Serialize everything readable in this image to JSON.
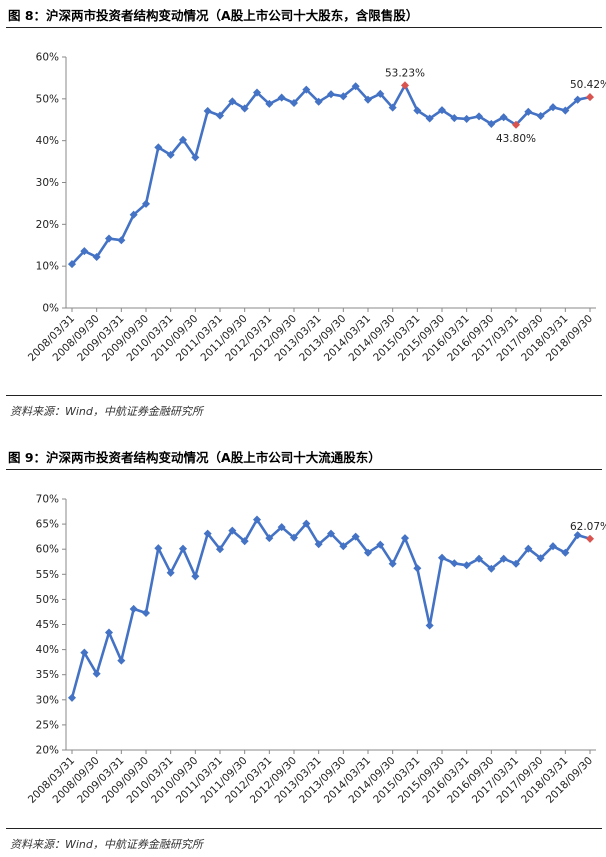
{
  "figures": [
    {
      "title": "图 8：沪深两市投资者结构变动情况（A股上市公司十大股东，含限售股）",
      "source": "资料来源：Wind，中航证券金融研究所"
    },
    {
      "title": "图 9：沪深两市投资者结构变动情况（A股上市公司十大流通股东）",
      "source": "资料来源：Wind，中航证券金融研究所"
    }
  ],
  "colors": {
    "line": "#4472C4",
    "highlight": "#D9534F",
    "grid": "#D9D9D9",
    "axis": "#888888"
  },
  "chart_data": [
    {
      "type": "line",
      "title": "",
      "xlabel": "",
      "ylabel": "",
      "ylim": [
        0,
        60
      ],
      "y_ticks": [
        "0%",
        "10%",
        "20%",
        "30%",
        "40%",
        "50%",
        "60%"
      ],
      "grid": false,
      "x_tick_labels": [
        "2008/03/31",
        "2008/09/30",
        "2009/03/31",
        "2009/09/30",
        "2010/03/31",
        "2010/09/30",
        "2011/03/31",
        "2011/09/30",
        "2012/03/31",
        "2012/09/30",
        "2013/03/31",
        "2013/09/30",
        "2014/03/31",
        "2014/09/30",
        "2015/03/31",
        "2015/09/30",
        "2016/03/31",
        "2016/09/30",
        "2017/03/31",
        "2017/09/30",
        "2018/03/31",
        "2018/09/30"
      ],
      "series": [
        {
          "values": [
            10.5,
            13.6,
            12.2,
            16.6,
            16.2,
            22.3,
            24.9,
            38.4,
            36.6,
            40.2,
            36.0,
            47.1,
            46.0,
            49.4,
            47.7,
            51.5,
            48.8,
            50.3,
            49.0,
            52.2,
            49.3,
            51.1,
            50.6,
            53.0,
            49.8,
            51.2,
            47.9,
            53.23,
            47.2,
            45.3,
            47.3,
            45.4,
            45.2,
            45.8,
            44.0,
            45.6,
            43.8,
            46.9,
            45.9,
            48.0,
            47.2,
            49.8,
            50.42
          ]
        }
      ],
      "annotations": [
        {
          "label": "53.23%",
          "index": 27,
          "value": 53.23,
          "position": "above"
        },
        {
          "label": "43.80%",
          "index": 36,
          "value": 43.8,
          "position": "below"
        },
        {
          "label": "50.42%",
          "index": 42,
          "value": 50.42,
          "position": "above"
        }
      ]
    },
    {
      "type": "line",
      "title": "",
      "xlabel": "",
      "ylabel": "",
      "ylim": [
        20,
        70
      ],
      "y_ticks": [
        "20%",
        "25%",
        "30%",
        "35%",
        "40%",
        "45%",
        "50%",
        "55%",
        "60%",
        "65%",
        "70%"
      ],
      "grid": false,
      "x_tick_labels": [
        "2008/03/31",
        "2008/09/30",
        "2009/03/31",
        "2009/09/30",
        "2010/03/31",
        "2010/09/30",
        "2011/03/31",
        "2011/09/30",
        "2012/03/31",
        "2012/09/30",
        "2013/03/31",
        "2013/09/30",
        "2014/03/31",
        "2014/09/30",
        "2015/03/31",
        "2015/09/30",
        "2016/03/31",
        "2016/09/30",
        "2017/03/31",
        "2017/09/30",
        "2018/03/31",
        "2018/09/30"
      ],
      "series": [
        {
          "values": [
            30.4,
            39.4,
            35.2,
            43.4,
            37.8,
            48.1,
            47.3,
            60.2,
            55.3,
            60.1,
            54.6,
            63.1,
            60.0,
            63.7,
            61.6,
            65.9,
            62.2,
            64.4,
            62.3,
            65.1,
            61.0,
            63.1,
            60.6,
            62.5,
            59.3,
            60.9,
            57.1,
            62.2,
            56.2,
            44.8,
            58.3,
            57.2,
            56.8,
            58.1,
            56.1,
            58.1,
            57.1,
            60.1,
            58.2,
            60.6,
            59.3,
            62.8,
            62.07
          ]
        }
      ],
      "annotations": [
        {
          "label": "62.07%",
          "index": 42,
          "value": 62.07,
          "position": "above"
        }
      ]
    }
  ]
}
